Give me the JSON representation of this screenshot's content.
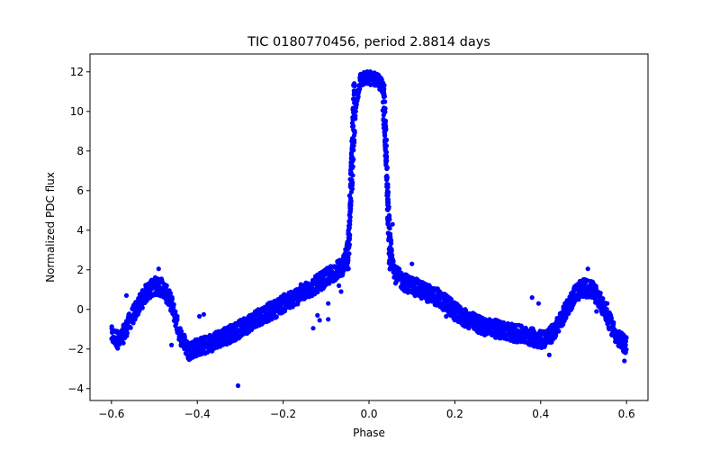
{
  "chart_data": {
    "type": "scatter",
    "title": "TIC 0180770456, period 2.8814 days",
    "xlabel": "Phase",
    "ylabel": "Normalized PDC flux",
    "xlim": [
      -0.65,
      0.65
    ],
    "ylim": [
      -4.6,
      12.9
    ],
    "xticks": [
      -0.6,
      -0.4,
      -0.2,
      0.0,
      0.2,
      0.4,
      0.6
    ],
    "xtick_labels": [
      "−0.6",
      "−0.4",
      "−0.2",
      "0.0",
      "0.2",
      "0.4",
      "0.6"
    ],
    "yticks": [
      -4,
      -2,
      0,
      2,
      4,
      6,
      8,
      10,
      12
    ],
    "ytick_labels": [
      "−4",
      "−2",
      "0",
      "2",
      "4",
      "6",
      "8",
      "10",
      "12"
    ],
    "grid": false,
    "point_color": "#0000ff",
    "series": [
      {
        "curve": [
          [
            -0.6,
            -1.3
          ],
          [
            -0.58,
            -1.6
          ],
          [
            -0.56,
            -0.7
          ],
          [
            -0.54,
            0.1
          ],
          [
            -0.52,
            0.8
          ],
          [
            -0.5,
            1.2
          ],
          [
            -0.48,
            1.1
          ],
          [
            -0.46,
            0.3
          ],
          [
            -0.44,
            -1.3
          ],
          [
            -0.42,
            -2.1
          ],
          [
            -0.4,
            -1.9
          ],
          [
            -0.38,
            -1.8
          ],
          [
            -0.36,
            -1.6
          ],
          [
            -0.34,
            -1.4
          ],
          [
            -0.32,
            -1.2
          ],
          [
            -0.3,
            -1.0
          ],
          [
            -0.28,
            -0.7
          ],
          [
            -0.26,
            -0.4
          ],
          [
            -0.24,
            -0.2
          ],
          [
            -0.22,
            0.0
          ],
          [
            -0.2,
            0.3
          ],
          [
            -0.18,
            0.5
          ],
          [
            -0.16,
            0.8
          ],
          [
            -0.14,
            1.0
          ],
          [
            -0.12,
            1.3
          ],
          [
            -0.1,
            1.6
          ],
          [
            -0.08,
            1.9
          ],
          [
            -0.06,
            2.2
          ],
          [
            -0.05,
            3.0
          ],
          [
            -0.04,
            6.0
          ],
          [
            -0.03,
            10.5
          ],
          [
            -0.02,
            11.6
          ],
          [
            0.0,
            11.7
          ],
          [
            0.02,
            11.6
          ],
          [
            0.03,
            11.3
          ],
          [
            0.04,
            7.0
          ],
          [
            0.05,
            3.5
          ],
          [
            0.06,
            1.8
          ],
          [
            0.08,
            1.4
          ],
          [
            0.1,
            1.2
          ],
          [
            0.12,
            1.0
          ],
          [
            0.14,
            0.8
          ],
          [
            0.16,
            0.6
          ],
          [
            0.18,
            0.3
          ],
          [
            0.2,
            -0.1
          ],
          [
            0.22,
            -0.4
          ],
          [
            0.24,
            -0.6
          ],
          [
            0.26,
            -0.8
          ],
          [
            0.28,
            -0.9
          ],
          [
            0.3,
            -1.0
          ],
          [
            0.32,
            -1.1
          ],
          [
            0.34,
            -1.2
          ],
          [
            0.36,
            -1.3
          ],
          [
            0.38,
            -1.4
          ],
          [
            0.4,
            -1.5
          ],
          [
            0.42,
            -1.4
          ],
          [
            0.44,
            -0.8
          ],
          [
            0.46,
            0.0
          ],
          [
            0.48,
            0.8
          ],
          [
            0.5,
            1.1
          ],
          [
            0.52,
            1.0
          ],
          [
            0.54,
            0.4
          ],
          [
            0.56,
            -0.6
          ],
          [
            0.58,
            -1.5
          ],
          [
            0.6,
            -1.8
          ]
        ],
        "scatter_halfwidth": 0.45,
        "outliers": [
          [
            -0.305,
            -3.85
          ],
          [
            -0.42,
            -2.4
          ],
          [
            -0.46,
            -1.8
          ],
          [
            -0.545,
            -0.5
          ],
          [
            -0.565,
            0.7
          ],
          [
            -0.49,
            2.05
          ],
          [
            -0.12,
            -0.3
          ],
          [
            -0.13,
            -0.95
          ],
          [
            -0.115,
            -0.55
          ],
          [
            -0.095,
            0.3
          ],
          [
            0.055,
            4.3
          ],
          [
            0.1,
            2.3
          ],
          [
            0.18,
            -0.35
          ],
          [
            0.19,
            -0.3
          ],
          [
            0.2,
            -0.5
          ],
          [
            0.38,
            0.6
          ],
          [
            0.395,
            0.3
          ],
          [
            0.42,
            -2.3
          ],
          [
            0.51,
            2.05
          ],
          [
            0.53,
            -0.1
          ],
          [
            0.555,
            0.3
          ],
          [
            0.59,
            -1.7
          ],
          [
            0.595,
            -2.6
          ],
          [
            -0.095,
            -0.5
          ],
          [
            -0.385,
            -0.25
          ],
          [
            -0.395,
            -0.35
          ],
          [
            -0.07,
            1.2
          ],
          [
            -0.065,
            0.9
          ]
        ]
      }
    ]
  }
}
